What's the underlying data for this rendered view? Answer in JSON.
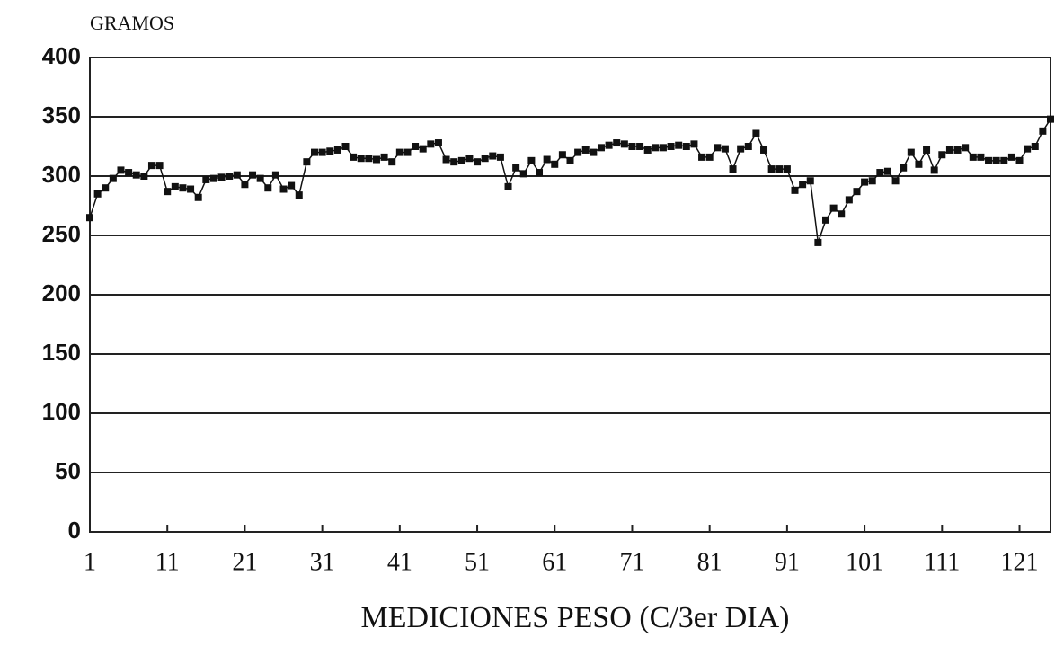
{
  "chart_data": {
    "type": "line",
    "title": "GRAMOS",
    "x_label": "MEDICIONES PESO (C/3er DIA)",
    "x": [
      1,
      2,
      3,
      4,
      5,
      6,
      7,
      8,
      9,
      10,
      11,
      12,
      13,
      14,
      15,
      16,
      17,
      18,
      19,
      20,
      21,
      22,
      23,
      24,
      25,
      26,
      27,
      28,
      29,
      30,
      31,
      32,
      33,
      34,
      35,
      36,
      37,
      38,
      39,
      40,
      41,
      42,
      43,
      44,
      45,
      46,
      47,
      48,
      49,
      50,
      51,
      52,
      53,
      54,
      55,
      56,
      57,
      58,
      59,
      60,
      61,
      62,
      63,
      64,
      65,
      66,
      67,
      68,
      69,
      70,
      71,
      72,
      73,
      74,
      75,
      76,
      77,
      78,
      79,
      80,
      81,
      82,
      83,
      84,
      85,
      86,
      87,
      88,
      89,
      90,
      91,
      92,
      93,
      94,
      95,
      96,
      97,
      98,
      99,
      100,
      101,
      102,
      103,
      104,
      105,
      106,
      107,
      108,
      109,
      110,
      111,
      112,
      113,
      114,
      115,
      116,
      117,
      118,
      119,
      120,
      121,
      122,
      123,
      124,
      125
    ],
    "series": [
      {
        "color": "#111111",
        "values": [
          265,
          285,
          290,
          298,
          305,
          303,
          301,
          300,
          309,
          309,
          287,
          291,
          290,
          289,
          282,
          297,
          298,
          299,
          300,
          301,
          293,
          301,
          298,
          290,
          301,
          289,
          292,
          284,
          312,
          320,
          320,
          321,
          322,
          325,
          316,
          315,
          315,
          314,
          316,
          312,
          320,
          320,
          325,
          323,
          327,
          328,
          314,
          312,
          313,
          315,
          312,
          315,
          317,
          316,
          291,
          307,
          302,
          313,
          303,
          314,
          310,
          318,
          313,
          320,
          322,
          320,
          324,
          326,
          328,
          327,
          325,
          325,
          322,
          324,
          324,
          325,
          326,
          325,
          327,
          316,
          316,
          324,
          323,
          306,
          323,
          325,
          336,
          322,
          306,
          306,
          306,
          288,
          293,
          296,
          244,
          263,
          273,
          268,
          280,
          287,
          295,
          296,
          303,
          304,
          296,
          307,
          320,
          310,
          322,
          305,
          318,
          322,
          322,
          324,
          316,
          316,
          313,
          313,
          313,
          316,
          313,
          323,
          325,
          338,
          348
        ]
      }
    ],
    "xlim": [
      1,
      125
    ],
    "xticks": [
      1,
      11,
      21,
      31,
      41,
      51,
      61,
      71,
      81,
      91,
      101,
      111,
      121
    ],
    "ylim": [
      0,
      400
    ],
    "yticks": [
      0,
      50,
      100,
      150,
      200,
      250,
      300,
      350,
      400
    ],
    "grid": true
  }
}
